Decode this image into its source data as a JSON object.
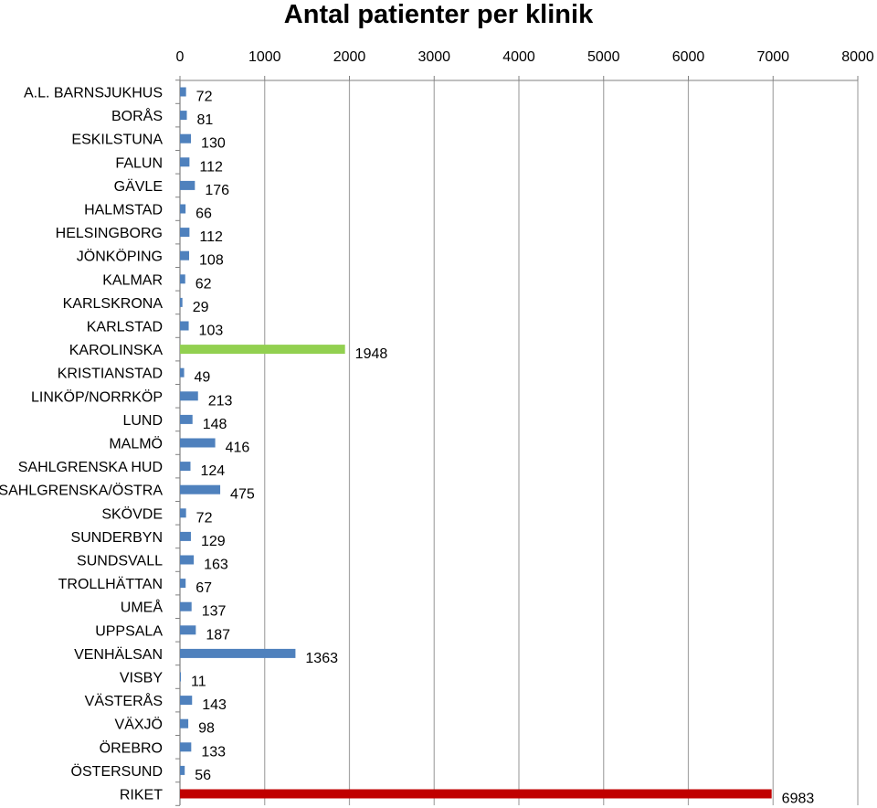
{
  "chart_data": {
    "type": "bar",
    "orientation": "horizontal",
    "title": "Antal patienter per klinik",
    "xlim": [
      0,
      8000
    ],
    "x_ticks": [
      0,
      1000,
      2000,
      3000,
      4000,
      5000,
      6000,
      7000,
      8000
    ],
    "x_axis_position": "top",
    "grid": true,
    "legend": "none",
    "categories": [
      "A.L. BARNSJUKHUS",
      "BORÅS",
      "ESKILSTUNA",
      "FALUN",
      "GÄVLE",
      "HALMSTAD",
      "HELSINGBORG",
      "JÖNKÖPING",
      "KALMAR",
      "KARLSKRONA",
      "KARLSTAD",
      "KAROLINSKA",
      "KRISTIANSTAD",
      "LINKÖP/NORRKÖP",
      "LUND",
      "MALMÖ",
      "SAHLGRENSKA HUD",
      "SAHLGRENSKA/ÖSTRA",
      "SKÖVDE",
      "SUNDERBYN",
      "SUNDSVALL",
      "TROLLHÄTTAN",
      "UMEÅ",
      "UPPSALA",
      "VENHÄLSAN",
      "VISBY",
      "VÄSTERÅS",
      "VÄXJÖ",
      "ÖREBRO",
      "ÖSTERSUND",
      "RIKET"
    ],
    "values": [
      72,
      81,
      130,
      112,
      176,
      66,
      112,
      108,
      62,
      29,
      103,
      1948,
      49,
      213,
      148,
      416,
      124,
      475,
      72,
      129,
      163,
      67,
      137,
      187,
      1363,
      11,
      143,
      98,
      133,
      56,
      6983
    ],
    "colors": {
      "default": "#4F81BD",
      "KAROLINSKA": "#92D050",
      "RIKET": "#C00000",
      "grid": "#A6A6A6"
    }
  }
}
